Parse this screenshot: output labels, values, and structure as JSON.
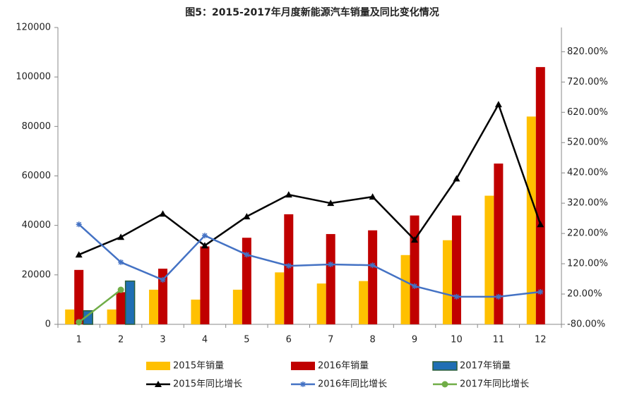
{
  "chart_data": {
    "type": "combo",
    "title": "图5：2015-2017年月度新能源汽车销量及同比变化情况",
    "categories": [
      "1",
      "2",
      "3",
      "4",
      "5",
      "6",
      "7",
      "8",
      "9",
      "10",
      "11",
      "12"
    ],
    "ylim": [
      0,
      120000
    ],
    "yticks": [
      0,
      20000,
      40000,
      60000,
      80000,
      100000,
      120000
    ],
    "y2lim": [
      -80,
      900
    ],
    "y2ticks": [
      {
        "value": -80,
        "label": "-80.00%"
      },
      {
        "value": 20,
        "label": "20.00%"
      },
      {
        "value": 120,
        "label": "120.00%"
      },
      {
        "value": 220,
        "label": "220.00%"
      },
      {
        "value": 320,
        "label": "320.00%"
      },
      {
        "value": 420,
        "label": "420.00%"
      },
      {
        "value": 520,
        "label": "520.00%"
      },
      {
        "value": 620,
        "label": "620.00%"
      },
      {
        "value": 720,
        "label": "720.00%"
      },
      {
        "value": 820,
        "label": "820.00%"
      }
    ],
    "series": [
      {
        "name": "2015年销量",
        "type": "bar",
        "color": "#FFC000",
        "values": [
          6000,
          6000,
          14000,
          10000,
          14000,
          21000,
          16500,
          17500,
          28000,
          34000,
          52000,
          84000
        ]
      },
      {
        "name": "2016年销量",
        "type": "bar",
        "color": "#C00000",
        "values": [
          22000,
          13000,
          22500,
          31500,
          35000,
          44500,
          36500,
          38000,
          44000,
          44000,
          65000,
          104000
        ]
      },
      {
        "name": "2017年销量",
        "type": "bar",
        "color": "#1F6FB4",
        "edge": "#2B5F3A",
        "values": [
          5500,
          17500,
          null,
          null,
          null,
          null,
          null,
          null,
          null,
          null,
          null,
          null
        ]
      },
      {
        "name": "2015年同比增长",
        "type": "line",
        "axis": "y2",
        "color": "#000000",
        "marker": "triangle",
        "values": [
          150,
          208,
          285,
          180,
          276,
          348,
          320,
          341,
          199,
          401,
          646,
          250
        ]
      },
      {
        "name": "2016年同比增长",
        "type": "line",
        "axis": "y2",
        "color": "#4472C4",
        "marker": "star",
        "values": [
          250,
          125,
          67,
          213,
          150,
          113,
          118,
          115,
          46,
          11,
          11,
          27
        ]
      },
      {
        "name": "2017年同比增长",
        "type": "line",
        "axis": "y2",
        "color": "#70AD47",
        "marker": "circle",
        "values": [
          -73,
          34,
          null,
          null,
          null,
          null,
          null,
          null,
          null,
          null,
          null,
          null
        ]
      }
    ]
  }
}
